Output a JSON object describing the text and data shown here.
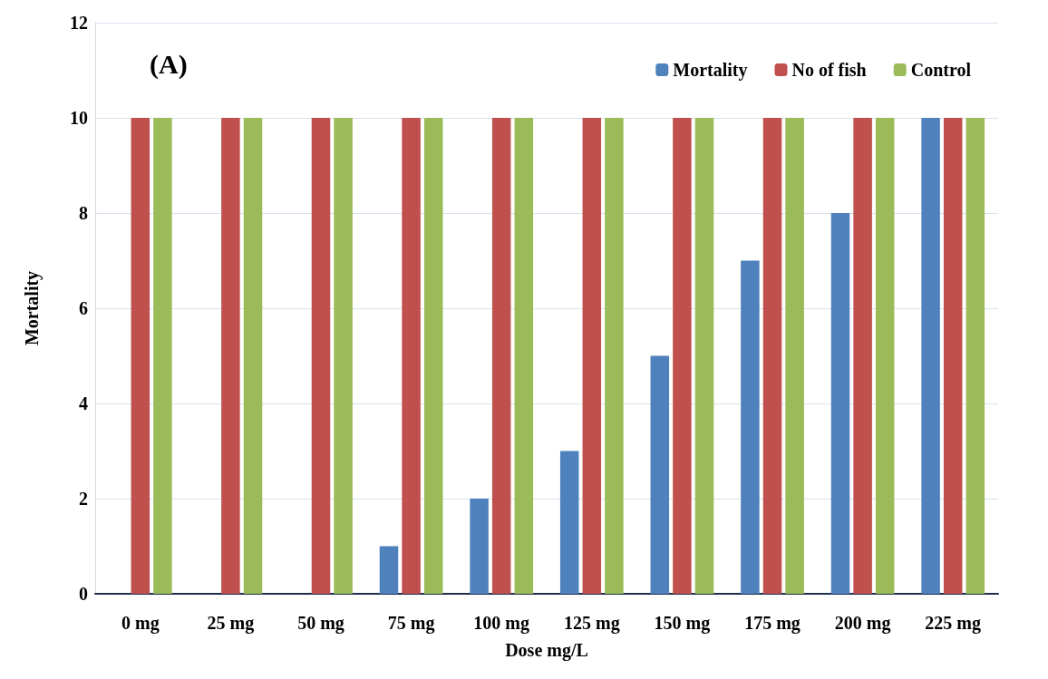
{
  "chart_data": {
    "type": "bar",
    "xlabel": "Dose mg/L",
    "ylabel": "Mortality",
    "annotations": [
      "(A)"
    ],
    "categories": [
      "0 mg",
      "25 mg",
      "50 mg",
      "75 mg",
      "100 mg",
      "125 mg",
      "150 mg",
      "175 mg",
      "200 mg",
      "225 mg"
    ],
    "series": [
      {
        "name": "Mortality",
        "color": "#4f81bd",
        "values": [
          0,
          0,
          0,
          1,
          2,
          3,
          5,
          7,
          8,
          10
        ]
      },
      {
        "name": "No of fish",
        "color": "#c0504d",
        "values": [
          10,
          10,
          10,
          10,
          10,
          10,
          10,
          10,
          10,
          10
        ]
      },
      {
        "name": "Control",
        "color": "#9bbb59",
        "values": [
          10,
          10,
          10,
          10,
          10,
          10,
          10,
          10,
          10,
          10
        ]
      }
    ],
    "ylim": [
      0,
      12
    ],
    "yticks": [
      0,
      2,
      4,
      6,
      8,
      10,
      12
    ],
    "grid": "y",
    "legend": "top right"
  }
}
